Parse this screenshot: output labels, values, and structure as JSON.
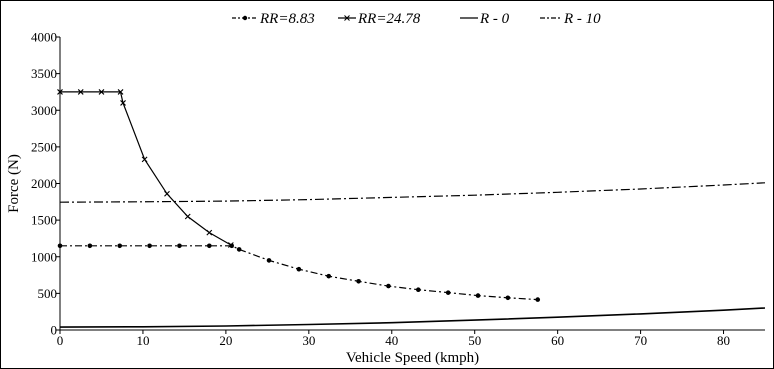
{
  "chart_data": {
    "type": "line",
    "xlabel": "Vehicle Speed (kmph)",
    "ylabel": "Force (N)",
    "xlim": [
      0,
      85
    ],
    "ylim": [
      0,
      4000
    ],
    "xticks": [
      "0",
      "10",
      "20",
      "30",
      "40",
      "50",
      "60",
      "70",
      "80"
    ],
    "yticks": [
      "0",
      "500",
      "1000",
      "1500",
      "2000",
      "2500",
      "3000",
      "3500",
      "4000"
    ],
    "grid": false,
    "legend_position": "top",
    "series": [
      {
        "name": "RR=8.83",
        "style": "dash-dot with circle markers",
        "x": [
          0,
          3.6,
          7.2,
          10.8,
          14.4,
          18.0,
          20.7,
          21.6,
          25.2,
          28.8,
          32.4,
          36.0,
          39.6,
          43.2,
          46.8,
          50.4,
          54.0,
          57.6
        ],
        "y": [
          1150,
          1150,
          1150,
          1150,
          1150,
          1150,
          1150,
          1100,
          950,
          830,
          735,
          665,
          600,
          550,
          510,
          470,
          440,
          415
        ]
      },
      {
        "name": "RR=24.78",
        "style": "solid with x markers",
        "x": [
          0,
          2.5,
          5.0,
          7.3,
          7.6,
          10.2,
          12.9,
          15.4,
          18.0,
          20.6
        ],
        "y": [
          3250,
          3250,
          3250,
          3250,
          3100,
          2330,
          1860,
          1550,
          1330,
          1160
        ]
      },
      {
        "name": "R - 0",
        "style": "solid",
        "x": [
          0,
          10,
          20,
          30,
          40,
          50,
          60,
          70,
          80,
          85
        ],
        "y": [
          40,
          44,
          55,
          75,
          100,
          135,
          175,
          220,
          270,
          300
        ]
      },
      {
        "name": "R - 10",
        "style": "dash-dot",
        "x": [
          0,
          10,
          20,
          30,
          40,
          50,
          60,
          70,
          80,
          85
        ],
        "y": [
          1745,
          1750,
          1760,
          1780,
          1810,
          1840,
          1880,
          1925,
          1980,
          2010
        ]
      }
    ]
  }
}
